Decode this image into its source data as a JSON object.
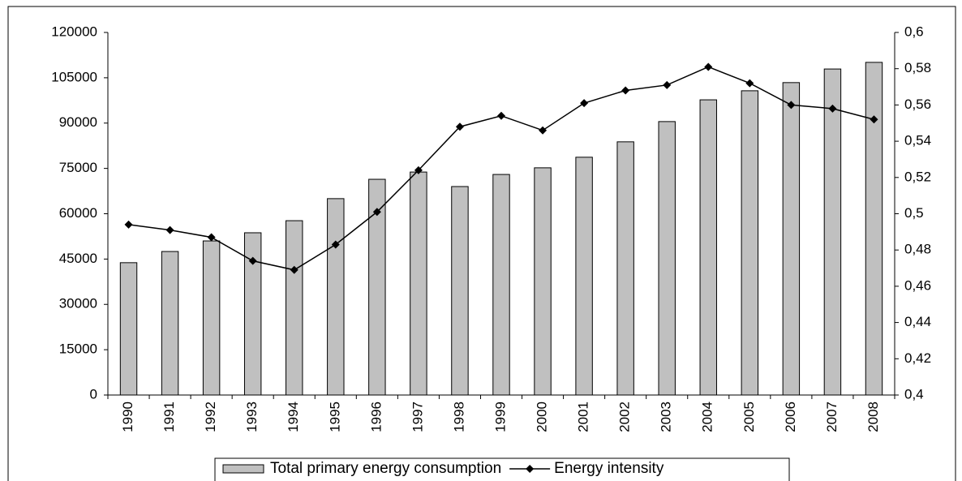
{
  "chart_data": {
    "type": "bar",
    "categories": [
      "1990",
      "1991",
      "1992",
      "1993",
      "1994",
      "1995",
      "1996",
      "1997",
      "1998",
      "1999",
      "2000",
      "2001",
      "2002",
      "2003",
      "2004",
      "2005",
      "2006",
      "2007",
      "2008"
    ],
    "series": [
      {
        "name": "Total primary energy consumption",
        "type": "bar",
        "color": "#c0c0c0",
        "values": [
          43800,
          47500,
          51000,
          53700,
          57700,
          65000,
          71400,
          73800,
          69000,
          73000,
          75200,
          78700,
          83800,
          90500,
          97700,
          100700,
          103400,
          107900,
          110100
        ]
      },
      {
        "name": "Energy intensity",
        "type": "line",
        "axis": "y2",
        "color": "#000000",
        "values": [
          0.494,
          0.491,
          0.487,
          0.474,
          0.469,
          0.483,
          0.501,
          0.524,
          0.548,
          0.554,
          0.546,
          0.561,
          0.568,
          0.571,
          0.581,
          0.572,
          0.56,
          0.558,
          0.552
        ]
      }
    ],
    "ylim": [
      0,
      120000
    ],
    "yticks": [
      0,
      15000,
      30000,
      45000,
      60000,
      75000,
      90000,
      105000,
      120000
    ],
    "y2lim": [
      0.4,
      0.6
    ],
    "y2ticks": [
      {
        "value": 0.4,
        "label": "0,4"
      },
      {
        "value": 0.42,
        "label": "0,42"
      },
      {
        "value": 0.44,
        "label": "0,44"
      },
      {
        "value": 0.46,
        "label": "0,46"
      },
      {
        "value": 0.48,
        "label": "0,48"
      },
      {
        "value": 0.5,
        "label": "0,5"
      },
      {
        "value": 0.52,
        "label": "0,52"
      },
      {
        "value": 0.54,
        "label": "0,54"
      },
      {
        "value": 0.56,
        "label": "0,56"
      },
      {
        "value": 0.58,
        "label": "0,58"
      },
      {
        "value": 0.6,
        "label": "0,6"
      }
    ],
    "grid": false,
    "legend": "bottom"
  }
}
